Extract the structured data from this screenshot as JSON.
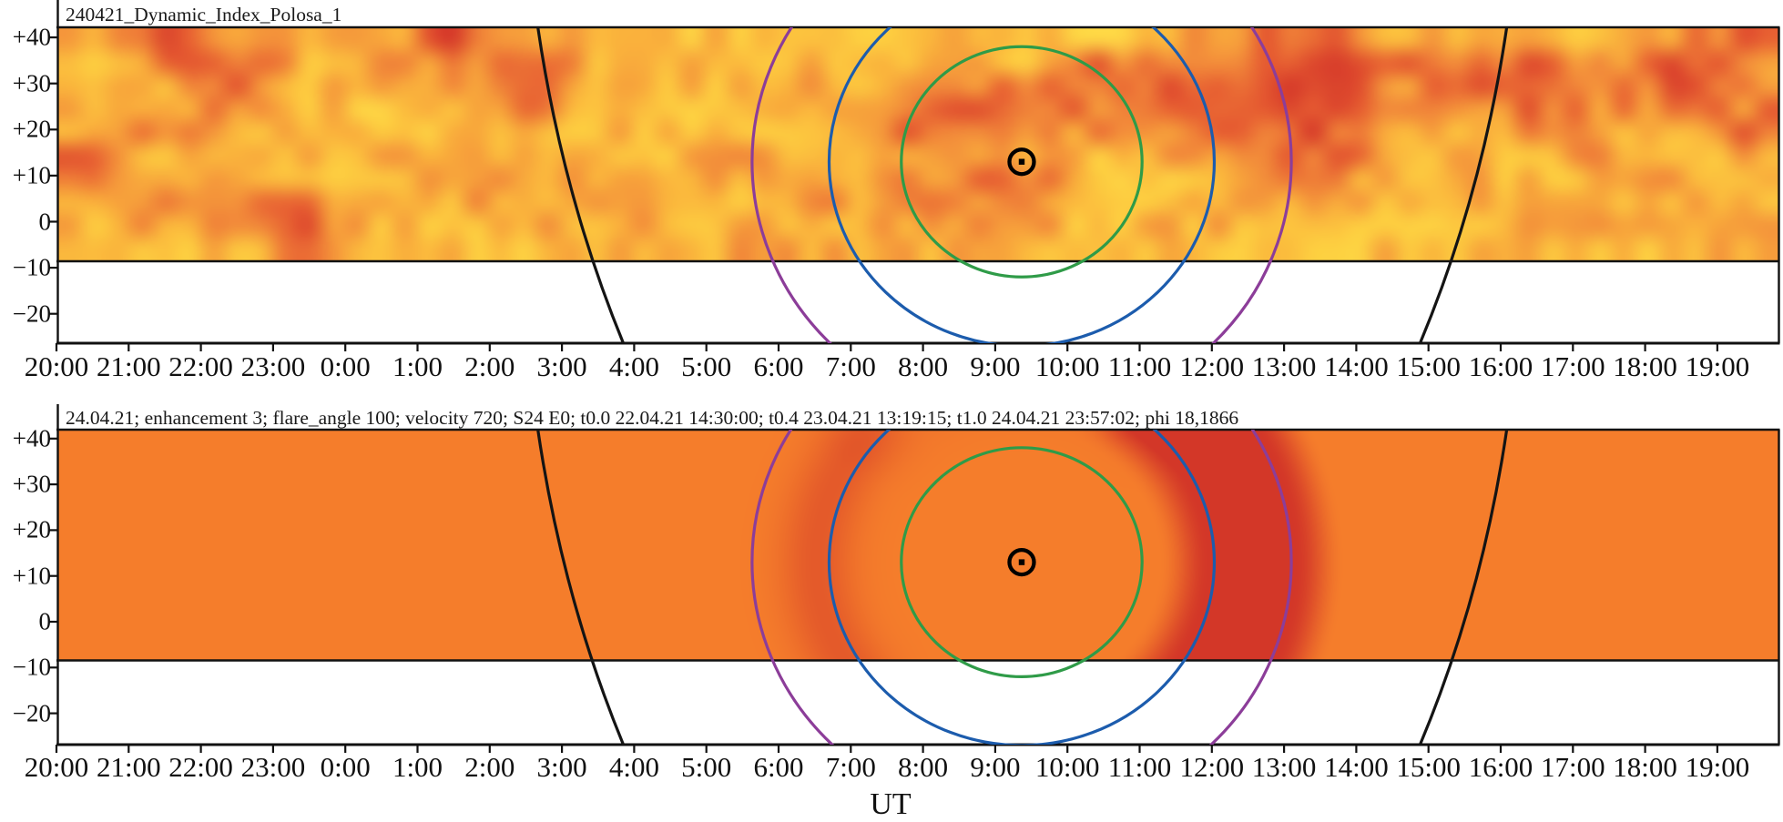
{
  "figure": {
    "x_label": "UT",
    "x_ticks": [
      "20:00",
      "21:00",
      "22:00",
      "23:00",
      "0:00",
      "1:00",
      "2:00",
      "3:00",
      "4:00",
      "5:00",
      "6:00",
      "7:00",
      "8:00",
      "9:00",
      "10:00",
      "11:00",
      "12:00",
      "13:00",
      "14:00",
      "15:00",
      "16:00",
      "17:00",
      "18:00",
      "19:00"
    ],
    "y_ticks": [
      "+40",
      "+30",
      "+20",
      "+10",
      "0",
      "−10",
      "−20"
    ],
    "y_tick_values": [
      40,
      30,
      20,
      10,
      0,
      -10,
      -20
    ]
  },
  "panels": [
    {
      "title": "240421_Dynamic_Index_Polosa_1"
    },
    {
      "title": "24.04.21; enhancement 3; flare_angle 100; velocity 720; S24 E0; t0.0 22.04.21 14:30:00; t0.4 23.04.21 13:19:15; t1.0 24.04.21 23:57:02; phi 18,1866"
    }
  ],
  "chart_data": [
    {
      "type": "heatmap",
      "title": "240421_Dynamic_Index_Polosa_1",
      "xlabel": "UT",
      "x_ticks": [
        "20:00",
        "21:00",
        "22:00",
        "23:00",
        "0:00",
        "1:00",
        "2:00",
        "3:00",
        "4:00",
        "5:00",
        "6:00",
        "7:00",
        "8:00",
        "9:00",
        "10:00",
        "11:00",
        "12:00",
        "13:00",
        "14:00",
        "15:00",
        "16:00",
        "17:00",
        "18:00",
        "19:00"
      ],
      "ylabel_ticks": [
        40,
        30,
        20,
        10,
        0,
        -10,
        -20
      ],
      "y_axis_range_deg": [
        -27,
        42.5
      ],
      "data_band_range_deg": [
        -8.5,
        42.5
      ],
      "grid_columns_hours": [
        "20",
        "21",
        "22",
        "23",
        "0",
        "1",
        "2",
        "3",
        "4",
        "5",
        "6",
        "7",
        "8",
        "9",
        "10",
        "11",
        "12",
        "13",
        "14",
        "15",
        "16",
        "17",
        "18",
        "19"
      ],
      "grid_rows_lat_deg": [
        39.5,
        33.1,
        26.7,
        20.3,
        13.9,
        7.5,
        1.1,
        -5.3
      ],
      "values": [
        [
          1.3,
          2.8,
          1.6,
          1.3,
          1.2,
          2.9,
          1.5,
          1.2,
          1.1,
          1.1,
          1.2,
          1.2,
          1.3,
          1.0,
          0.9,
          1.4,
          2.0,
          2.7,
          1.6,
          1.3,
          1.5,
          1.2,
          1.8,
          2.5
        ],
        [
          1.2,
          1.5,
          2.9,
          1.2,
          1.6,
          1.7,
          2.5,
          1.3,
          1.0,
          1.3,
          1.2,
          1.4,
          1.5,
          0.9,
          2.7,
          2.0,
          2.5,
          2.9,
          2.2,
          2.4,
          2.6,
          1.7,
          2.8,
          1.6
        ],
        [
          1.5,
          1.2,
          2.2,
          1.2,
          1.0,
          1.3,
          2.2,
          1.5,
          1.2,
          1.1,
          1.8,
          1.3,
          2.7,
          2.6,
          2.0,
          2.8,
          2.8,
          2.9,
          1.5,
          1.8,
          2.5,
          2.0,
          2.0,
          1.9
        ],
        [
          1.5,
          1.8,
          1.4,
          1.6,
          0.9,
          1.1,
          1.3,
          1.2,
          1.4,
          1.2,
          1.4,
          2.2,
          2.3,
          1.5,
          1.8,
          1.6,
          2.4,
          2.6,
          1.3,
          1.4,
          1.7,
          1.4,
          1.3,
          2.2
        ],
        [
          2.2,
          1.2,
          1.6,
          1.2,
          1.3,
          1.2,
          1.7,
          1.3,
          1.0,
          2.0,
          1.3,
          1.6,
          1.6,
          1.4,
          1.2,
          1.6,
          1.8,
          2.2,
          1.7,
          1.2,
          1.2,
          1.8,
          1.2,
          1.3
        ],
        [
          1.5,
          1.5,
          1.5,
          1.4,
          1.0,
          1.6,
          1.4,
          1.9,
          1.1,
          1.3,
          2.0,
          1.4,
          2.0,
          2.4,
          1.1,
          1.0,
          1.3,
          1.6,
          1.2,
          1.6,
          1.1,
          1.3,
          1.7,
          1.2
        ],
        [
          1.2,
          1.8,
          1.8,
          2.6,
          1.2,
          1.3,
          1.8,
          1.5,
          1.6,
          1.1,
          1.4,
          1.8,
          1.5,
          1.8,
          1.0,
          1.3,
          1.5,
          1.3,
          1.0,
          1.2,
          1.4,
          1.6,
          1.3,
          1.6
        ],
        [
          1.5,
          1.3,
          1.2,
          2.2,
          1.0,
          1.1,
          1.2,
          1.2,
          1.1,
          1.5,
          1.4,
          1.2,
          1.5,
          1.3,
          1.2,
          1.2,
          1.2,
          1.2,
          1.1,
          1.1,
          1.1,
          1.1,
          1.2,
          1.3
        ]
      ],
      "palette_stops": [
        [
          0,
          "#FFE14E"
        ],
        [
          0.8,
          "#FDCF40"
        ],
        [
          1.3,
          "#FAB33C"
        ],
        [
          1.9,
          "#F28B3A"
        ],
        [
          2.4,
          "#E65C31"
        ],
        [
          3.0,
          "#D63A2A"
        ]
      ],
      "noise_seed": 240421,
      "noise_amp": 0.5,
      "overlays": {
        "sun": {
          "ut": "9:22",
          "lat_deg": 13
        },
        "circles": [
          {
            "name": "inner",
            "color": "#2F9B48",
            "radius_deg": 25
          },
          {
            "name": "middle",
            "color": "#1C5CAD",
            "radius_deg": 40
          },
          {
            "name": "outer",
            "color": "#8C3D99",
            "radius_deg": 56
          }
        ],
        "limb_lines": {
          "left": {
            "ut_top": "2:40",
            "ut_bottom": "3:51",
            "color": "#141414"
          },
          "right": {
            "ut_top": "16:05",
            "ut_bottom": "14:53",
            "color": "#141414"
          }
        }
      }
    },
    {
      "type": "heatmap",
      "title": "24.04.21; enhancement 3; flare_angle 100; velocity 720; S24 E0; t0.0 22.04.21 14:30:00; t0.4 23.04.21 13:19:15; t1.0 24.04.21 23:57:02; phi 18,1866",
      "xlabel": "UT",
      "x_ticks": [
        "20:00",
        "21:00",
        "22:00",
        "23:00",
        "0:00",
        "1:00",
        "2:00",
        "3:00",
        "4:00",
        "5:00",
        "6:00",
        "7:00",
        "8:00",
        "9:00",
        "10:00",
        "11:00",
        "12:00",
        "13:00",
        "14:00",
        "15:00",
        "16:00",
        "17:00",
        "18:00",
        "19:00"
      ],
      "ylabel_ticks": [
        40,
        30,
        20,
        10,
        0,
        -10,
        -20
      ],
      "y_axis_range_deg": [
        -27,
        42.5
      ],
      "data_band_range_deg": [
        -8.5,
        42.5
      ],
      "base_color": "#F57D2B",
      "shock_ring": {
        "color": "#D33728",
        "peak_radius_deg": 44.5,
        "inner_edge_deg": [
          28.5,
          39
        ],
        "outer_edge_deg": [
          56.5,
          67
        ],
        "right_sector_cos": [
          0.3,
          0.62
        ],
        "left_amp": 0.5,
        "left_gauss_center_deg": 42.7,
        "left_gauss_width_deg": 7.6,
        "top_amp": 0.22,
        "top_gauss_center_deg": 44,
        "top_gauss_width_deg": 10.5
      },
      "overlays": {
        "sun": {
          "ut": "9:22",
          "lat_deg": 13
        },
        "circles": [
          {
            "name": "inner",
            "color": "#2F9B48",
            "radius_deg": 25
          },
          {
            "name": "middle",
            "color": "#1C5CAD",
            "radius_deg": 40
          },
          {
            "name": "outer",
            "color": "#8C3D99",
            "radius_deg": 56
          }
        ],
        "limb_lines": {
          "left": {
            "ut_top": "2:40",
            "ut_bottom": "3:51",
            "color": "#141414"
          },
          "right": {
            "ut_top": "16:05",
            "ut_bottom": "14:53",
            "color": "#141414"
          }
        }
      }
    }
  ]
}
